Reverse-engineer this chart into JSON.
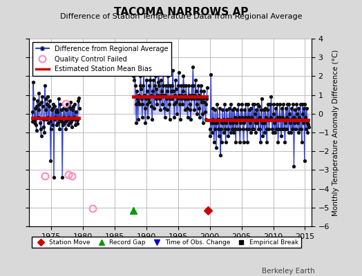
{
  "title": "TACOMA NARROWS AP",
  "subtitle": "Difference of Station Temperature Data from Regional Average",
  "ylabel_right": "Monthly Temperature Anomaly Difference (°C)",
  "watermark": "Berkeley Earth",
  "ylim": [
    -6,
    4
  ],
  "xlim": [
    1971.5,
    2016
  ],
  "yticks": [
    -6,
    -5,
    -4,
    -3,
    -2,
    -1,
    0,
    1,
    2,
    3,
    4
  ],
  "xticks": [
    1975,
    1980,
    1985,
    1990,
    1995,
    2000,
    2005,
    2010,
    2015
  ],
  "background_color": "#d9d9d9",
  "plot_bg_color": "#ffffff",
  "grid_color": "#bbbbbb",
  "line_color": "#3344cc",
  "dot_color": "#111111",
  "bias_color": "#cc0000",
  "qc_marker_color": "#ff88bb",
  "segment1_xstart": 1972.0,
  "segment1_xend": 1979.4,
  "segment1_bias": -0.22,
  "segment2_xstart": 1988.0,
  "segment2_xend": 1999.5,
  "segment2_bias": 0.9,
  "segment3_xstart": 1999.5,
  "segment3_xend": 2015.5,
  "segment3_bias": -0.35,
  "station_move_x": 1999.75,
  "station_move_y": -5.15,
  "record_gap_x": 1988.0,
  "record_gap_y": -5.15,
  "qc_failed_points": [
    [
      1974.0,
      -3.3
    ],
    [
      1977.25,
      0.55
    ],
    [
      1977.75,
      -3.25
    ],
    [
      1978.25,
      -3.3
    ],
    [
      1981.5,
      -5.05
    ]
  ]
}
